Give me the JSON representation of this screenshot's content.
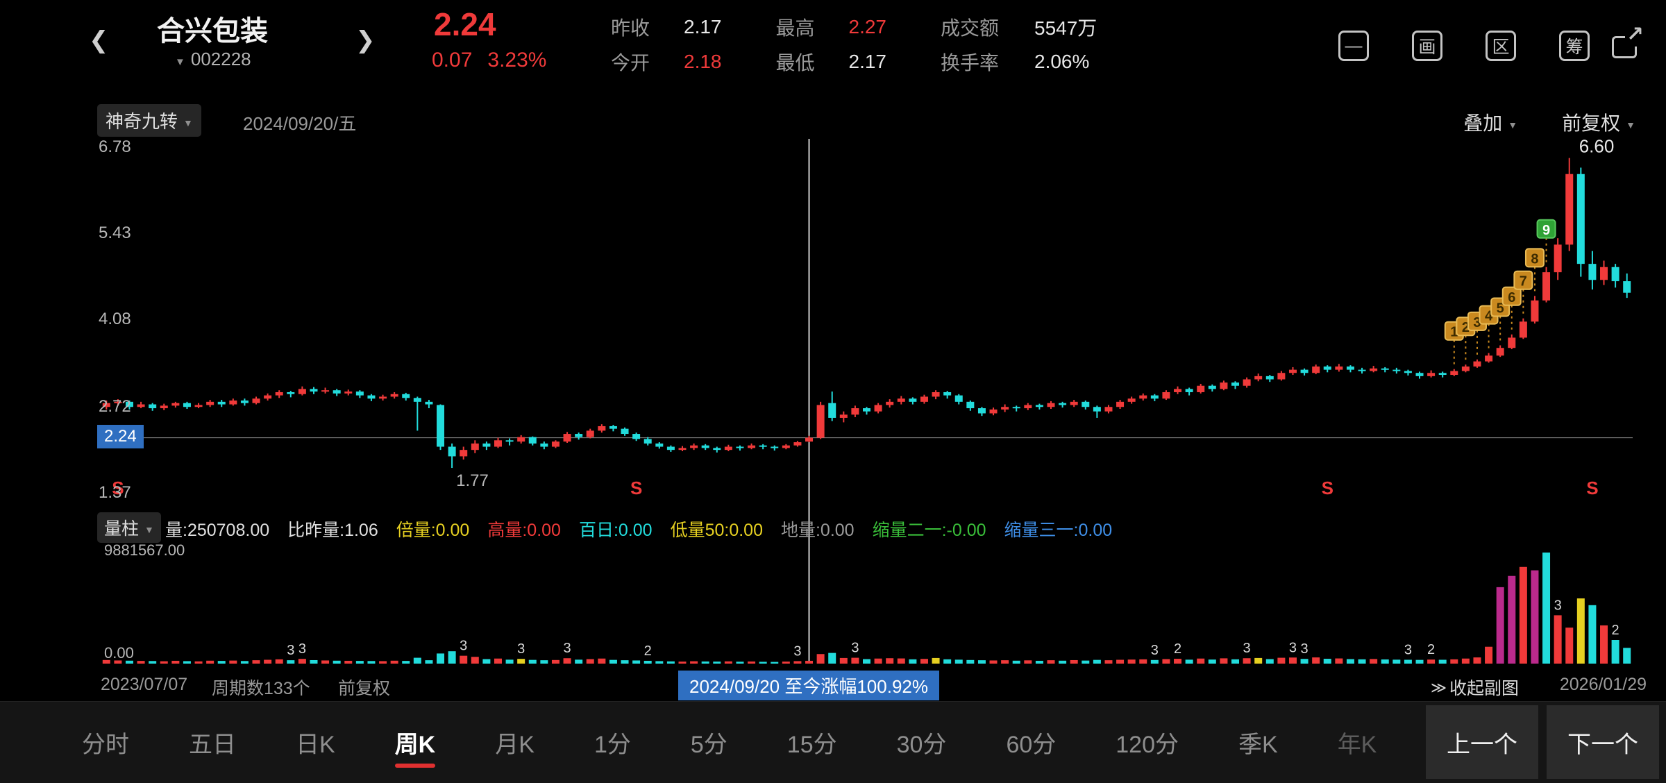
{
  "header": {
    "title": "合兴包装",
    "code": "002228",
    "price": "2.24",
    "change": "0.07",
    "change_pct": "3.23%",
    "quote": [
      {
        "label": "昨收",
        "value": "2.17",
        "color": "#e8e8e8"
      },
      {
        "label": "今开",
        "value": "2.18",
        "color": "#f03a3a"
      },
      {
        "label": "最高",
        "value": "2.27",
        "color": "#f03a3a"
      },
      {
        "label": "最低",
        "value": "2.17",
        "color": "#e8e8e8"
      },
      {
        "label": "成交额",
        "value": "5547万",
        "color": "#e8e8e8"
      },
      {
        "label": "换手率",
        "value": "2.06%",
        "color": "#e8e8e8"
      }
    ],
    "icons": [
      {
        "name": "minus-box-icon",
        "glyph": "—"
      },
      {
        "name": "draw-tool-icon",
        "glyph": "画"
      },
      {
        "name": "region-stats-icon",
        "glyph": "区"
      },
      {
        "name": "chips-icon",
        "glyph": "筹"
      }
    ]
  },
  "toolbar": {
    "indicator": "神奇九转",
    "date": "2024/09/20/五",
    "overlay": "叠加",
    "adjust": "前复权"
  },
  "volume_header": {
    "name": "量柱",
    "stats": [
      {
        "label": "量",
        "value": "250708.00",
        "color": "#e0e0e0"
      },
      {
        "label": "比昨量",
        "value": "1.06",
        "color": "#e0e0e0"
      },
      {
        "label": "倍量",
        "value": "0.00",
        "color": "#e6d021"
      },
      {
        "label": "高量",
        "value": "0.00",
        "color": "#f03a3a"
      },
      {
        "label": "百日",
        "value": "0.00",
        "color": "#22dcdc"
      },
      {
        "label": "低量50",
        "value": "0.00",
        "color": "#e6d021"
      },
      {
        "label": "地量",
        "value": "0.00",
        "color": "#9a9a9a"
      },
      {
        "label": "缩量二一",
        "value": "-0.00",
        "color": "#3abf3a"
      },
      {
        "label": "缩量三一",
        "value": "0.00",
        "color": "#3f8fe8"
      }
    ]
  },
  "footer": {
    "start_date": "2023/07/07",
    "period_count": "周期数133个",
    "adjust": "前复权",
    "range_gain": "2024/09/20 至今涨幅100.92%",
    "collapse": "收起副图",
    "end_date": "2026/01/29"
  },
  "tabs": {
    "items": [
      {
        "label": "分时"
      },
      {
        "label": "五日"
      },
      {
        "label": "日K"
      },
      {
        "label": "周K",
        "active": true
      },
      {
        "label": "月K"
      },
      {
        "label": "1分"
      },
      {
        "label": "5分"
      },
      {
        "label": "15分"
      },
      {
        "label": "30分"
      },
      {
        "label": "60分"
      },
      {
        "label": "120分"
      },
      {
        "label": "季K"
      },
      {
        "label": "年K",
        "dim": true
      }
    ],
    "prev_label": "上一个",
    "next_label": "下一个"
  },
  "chart_data": {
    "type": "candlestick",
    "title": "合兴包装(002228) 周K 前复权",
    "x_range": [
      "2023/07/07",
      "2026/01/29"
    ],
    "period_count": 133,
    "ylim": [
      1.37,
      6.78
    ],
    "y_axis_labels": [
      "6.78",
      "5.43",
      "4.08",
      "2.72",
      "1.37"
    ],
    "current_price_label": "2.24",
    "volume_ylim": [
      0,
      9881567
    ],
    "volume_axis_labels": [
      "9881567.00",
      "0.00"
    ],
    "crosshair_index": 61,
    "selected": {
      "date": "2024/09/20",
      "open": 2.18,
      "high": 2.27,
      "low": 2.17,
      "close": 2.24,
      "volume": 250708
    },
    "low_annotation": {
      "index": 30,
      "text": "1.77"
    },
    "high_annotation": {
      "index": 127,
      "text": "6.60"
    },
    "sell_markers": [
      1,
      46,
      106,
      129
    ],
    "td_badges": [
      {
        "i": 117,
        "n": "1"
      },
      {
        "i": 118,
        "n": "2"
      },
      {
        "i": 119,
        "n": "3"
      },
      {
        "i": 120,
        "n": "4"
      },
      {
        "i": 121,
        "n": "5"
      },
      {
        "i": 122,
        "n": "6"
      },
      {
        "i": 123,
        "n": "7"
      },
      {
        "i": 124,
        "n": "8"
      },
      {
        "i": 125,
        "n": "9",
        "green": true
      }
    ],
    "volume_labels": [
      {
        "i": 16,
        "t": "3"
      },
      {
        "i": 17,
        "t": "3"
      },
      {
        "i": 31,
        "t": "3"
      },
      {
        "i": 36,
        "t": "3"
      },
      {
        "i": 40,
        "t": "3"
      },
      {
        "i": 47,
        "t": "2"
      },
      {
        "i": 60,
        "t": "3"
      },
      {
        "i": 65,
        "t": "3"
      },
      {
        "i": 91,
        "t": "3"
      },
      {
        "i": 93,
        "t": "2"
      },
      {
        "i": 99,
        "t": "3"
      },
      {
        "i": 103,
        "t": "3"
      },
      {
        "i": 104,
        "t": "3"
      },
      {
        "i": 113,
        "t": "3"
      },
      {
        "i": 115,
        "t": "2"
      },
      {
        "i": 126,
        "t": "3"
      },
      {
        "i": 131,
        "t": "2"
      }
    ],
    "volume_color_overrides": {
      "36": "#e6d021",
      "72": "#e6d021",
      "100": "#e6d021",
      "121": "#bb2a8c",
      "122": "#bb2a8c",
      "124": "#bb2a8c",
      "125": "#22dcdc",
      "128": "#e6d021"
    },
    "colors": {
      "up": "#f03a3a",
      "down": "#22dcdc",
      "magenta": "#bb2a8c",
      "yellow": "#e6d021",
      "badge_orange": "#c9891f",
      "badge_green": "#2fa235",
      "crosshair": "#cfcfcf",
      "price_line": "#8a8a8a",
      "axis_text": "#b8b8b8",
      "highlight_blue": "#2f6fc1"
    },
    "candles": [
      [
        2.72,
        2.82,
        2.68,
        2.78,
        320000
      ],
      [
        2.78,
        2.84,
        2.74,
        2.8,
        280000
      ],
      [
        2.8,
        2.82,
        2.68,
        2.72,
        260000
      ],
      [
        2.72,
        2.8,
        2.7,
        2.76,
        240000
      ],
      [
        2.76,
        2.78,
        2.66,
        2.7,
        230000
      ],
      [
        2.7,
        2.77,
        2.67,
        2.74,
        210000
      ],
      [
        2.74,
        2.8,
        2.71,
        2.78,
        250000
      ],
      [
        2.78,
        2.8,
        2.69,
        2.72,
        220000
      ],
      [
        2.72,
        2.78,
        2.7,
        2.75,
        200000
      ],
      [
        2.75,
        2.83,
        2.72,
        2.8,
        260000
      ],
      [
        2.8,
        2.83,
        2.72,
        2.76,
        240000
      ],
      [
        2.76,
        2.85,
        2.74,
        2.82,
        270000
      ],
      [
        2.82,
        2.85,
        2.74,
        2.78,
        230000
      ],
      [
        2.78,
        2.88,
        2.76,
        2.85,
        300000
      ],
      [
        2.85,
        2.93,
        2.82,
        2.9,
        340000
      ],
      [
        2.9,
        2.98,
        2.86,
        2.95,
        380000
      ],
      [
        2.95,
        2.97,
        2.87,
        2.92,
        300000
      ],
      [
        2.92,
        3.04,
        2.9,
        3.0,
        420000
      ],
      [
        3.0,
        3.03,
        2.92,
        2.96,
        310000
      ],
      [
        2.96,
        3.02,
        2.93,
        2.98,
        280000
      ],
      [
        2.98,
        3.0,
        2.89,
        2.93,
        260000
      ],
      [
        2.93,
        2.99,
        2.9,
        2.96,
        250000
      ],
      [
        2.96,
        2.98,
        2.86,
        2.9,
        240000
      ],
      [
        2.9,
        2.92,
        2.81,
        2.85,
        230000
      ],
      [
        2.85,
        2.91,
        2.82,
        2.88,
        220000
      ],
      [
        2.88,
        2.95,
        2.85,
        2.92,
        260000
      ],
      [
        2.92,
        2.94,
        2.82,
        2.86,
        240000
      ],
      [
        2.86,
        2.88,
        2.35,
        2.8,
        520000
      ],
      [
        2.8,
        2.83,
        2.7,
        2.76,
        300000
      ],
      [
        2.75,
        2.76,
        2.05,
        2.1,
        900000
      ],
      [
        2.1,
        2.15,
        1.77,
        1.95,
        1100000
      ],
      [
        1.95,
        2.1,
        1.9,
        2.05,
        700000
      ],
      [
        2.05,
        2.2,
        2.0,
        2.15,
        600000
      ],
      [
        2.15,
        2.18,
        2.05,
        2.1,
        400000
      ],
      [
        2.1,
        2.24,
        2.08,
        2.2,
        450000
      ],
      [
        2.2,
        2.23,
        2.12,
        2.18,
        350000
      ],
      [
        2.18,
        2.28,
        2.15,
        2.25,
        420000
      ],
      [
        2.25,
        2.26,
        2.12,
        2.15,
        330000
      ],
      [
        2.15,
        2.18,
        2.06,
        2.1,
        300000
      ],
      [
        2.1,
        2.2,
        2.08,
        2.18,
        320000
      ],
      [
        2.18,
        2.33,
        2.16,
        2.3,
        480000
      ],
      [
        2.3,
        2.32,
        2.21,
        2.25,
        350000
      ],
      [
        2.25,
        2.38,
        2.23,
        2.35,
        400000
      ],
      [
        2.35,
        2.45,
        2.32,
        2.42,
        450000
      ],
      [
        2.42,
        2.44,
        2.34,
        2.38,
        330000
      ],
      [
        2.38,
        2.4,
        2.27,
        2.3,
        300000
      ],
      [
        2.3,
        2.32,
        2.19,
        2.22,
        280000
      ],
      [
        2.22,
        2.25,
        2.12,
        2.15,
        250000
      ],
      [
        2.15,
        2.17,
        2.07,
        2.1,
        220000
      ],
      [
        2.1,
        2.12,
        2.02,
        2.05,
        200000
      ],
      [
        2.05,
        2.11,
        2.03,
        2.08,
        180000
      ],
      [
        2.08,
        2.15,
        2.05,
        2.12,
        210000
      ],
      [
        2.12,
        2.14,
        2.05,
        2.08,
        190000
      ],
      [
        2.08,
        2.1,
        2.01,
        2.05,
        180000
      ],
      [
        2.05,
        2.13,
        2.03,
        2.1,
        200000
      ],
      [
        2.1,
        2.12,
        2.04,
        2.08,
        170000
      ],
      [
        2.08,
        2.15,
        2.06,
        2.12,
        190000
      ],
      [
        2.12,
        2.14,
        2.06,
        2.1,
        160000
      ],
      [
        2.1,
        2.12,
        2.04,
        2.08,
        150000
      ],
      [
        2.08,
        2.14,
        2.06,
        2.12,
        180000
      ],
      [
        2.12,
        2.19,
        2.1,
        2.17,
        220000
      ],
      [
        2.18,
        2.27,
        2.17,
        2.24,
        250708
      ],
      [
        2.24,
        2.8,
        2.22,
        2.75,
        850000
      ],
      [
        2.78,
        2.96,
        2.5,
        2.55,
        950000
      ],
      [
        2.55,
        2.65,
        2.48,
        2.6,
        500000
      ],
      [
        2.6,
        2.74,
        2.56,
        2.7,
        520000
      ],
      [
        2.7,
        2.72,
        2.6,
        2.65,
        400000
      ],
      [
        2.65,
        2.78,
        2.62,
        2.75,
        450000
      ],
      [
        2.75,
        2.84,
        2.71,
        2.8,
        480000
      ],
      [
        2.8,
        2.89,
        2.76,
        2.85,
        460000
      ],
      [
        2.85,
        2.87,
        2.76,
        2.8,
        380000
      ],
      [
        2.8,
        2.91,
        2.77,
        2.88,
        420000
      ],
      [
        2.88,
        2.98,
        2.84,
        2.95,
        500000
      ],
      [
        2.95,
        2.97,
        2.85,
        2.9,
        380000
      ],
      [
        2.9,
        2.92,
        2.76,
        2.8,
        350000
      ],
      [
        2.8,
        2.82,
        2.66,
        2.7,
        320000
      ],
      [
        2.7,
        2.72,
        2.58,
        2.62,
        300000
      ],
      [
        2.62,
        2.71,
        2.59,
        2.68,
        280000
      ],
      [
        2.68,
        2.76,
        2.64,
        2.72,
        300000
      ],
      [
        2.72,
        2.74,
        2.65,
        2.7,
        260000
      ],
      [
        2.7,
        2.78,
        2.67,
        2.75,
        290000
      ],
      [
        2.75,
        2.77,
        2.68,
        2.72,
        250000
      ],
      [
        2.72,
        2.81,
        2.69,
        2.78,
        300000
      ],
      [
        2.78,
        2.8,
        2.71,
        2.75,
        260000
      ],
      [
        2.75,
        2.83,
        2.72,
        2.8,
        310000
      ],
      [
        2.8,
        2.82,
        2.68,
        2.72,
        270000
      ],
      [
        2.72,
        2.74,
        2.55,
        2.65,
        330000
      ],
      [
        2.65,
        2.75,
        2.62,
        2.72,
        300000
      ],
      [
        2.72,
        2.83,
        2.69,
        2.8,
        340000
      ],
      [
        2.8,
        2.88,
        2.77,
        2.85,
        360000
      ],
      [
        2.85,
        2.93,
        2.82,
        2.9,
        380000
      ],
      [
        2.9,
        2.92,
        2.81,
        2.85,
        320000
      ],
      [
        2.85,
        2.98,
        2.83,
        2.95,
        400000
      ],
      [
        2.95,
        3.04,
        2.92,
        3.0,
        430000
      ],
      [
        3.0,
        3.02,
        2.9,
        2.95,
        350000
      ],
      [
        2.95,
        3.08,
        2.93,
        3.05,
        450000
      ],
      [
        3.05,
        3.07,
        2.96,
        3.0,
        360000
      ],
      [
        3.0,
        3.13,
        2.98,
        3.1,
        470000
      ],
      [
        3.1,
        3.12,
        3.0,
        3.05,
        380000
      ],
      [
        3.05,
        3.18,
        3.02,
        3.15,
        480000
      ],
      [
        3.15,
        3.24,
        3.12,
        3.2,
        500000
      ],
      [
        3.2,
        3.22,
        3.11,
        3.15,
        400000
      ],
      [
        3.15,
        3.28,
        3.13,
        3.25,
        520000
      ],
      [
        3.25,
        3.34,
        3.22,
        3.3,
        540000
      ],
      [
        3.3,
        3.32,
        3.21,
        3.25,
        420000
      ],
      [
        3.25,
        3.38,
        3.23,
        3.35,
        550000
      ],
      [
        3.35,
        3.37,
        3.26,
        3.3,
        430000
      ],
      [
        3.3,
        3.39,
        3.27,
        3.35,
        460000
      ],
      [
        3.35,
        3.37,
        3.26,
        3.3,
        400000
      ],
      [
        3.3,
        3.33,
        3.24,
        3.28,
        380000
      ],
      [
        3.28,
        3.36,
        3.26,
        3.32,
        410000
      ],
      [
        3.32,
        3.34,
        3.26,
        3.3,
        370000
      ],
      [
        3.3,
        3.33,
        3.24,
        3.28,
        350000
      ],
      [
        3.28,
        3.3,
        3.21,
        3.25,
        340000
      ],
      [
        3.25,
        3.27,
        3.16,
        3.2,
        330000
      ],
      [
        3.2,
        3.29,
        3.18,
        3.25,
        360000
      ],
      [
        3.25,
        3.27,
        3.18,
        3.22,
        340000
      ],
      [
        3.22,
        3.31,
        3.2,
        3.28,
        380000
      ],
      [
        3.28,
        3.38,
        3.26,
        3.35,
        450000
      ],
      [
        3.35,
        3.46,
        3.33,
        3.43,
        550000
      ],
      [
        3.43,
        3.56,
        3.41,
        3.52,
        1500000
      ],
      [
        3.52,
        3.68,
        3.5,
        3.64,
        6800000
      ],
      [
        3.64,
        3.85,
        3.62,
        3.8,
        7800000
      ],
      [
        3.8,
        4.1,
        3.78,
        4.05,
        8600000
      ],
      [
        4.05,
        4.45,
        4.02,
        4.38,
        8300000
      ],
      [
        4.38,
        4.9,
        4.35,
        4.82,
        9881567
      ],
      [
        4.82,
        5.35,
        4.7,
        5.25,
        4300000
      ],
      [
        5.25,
        6.6,
        5.15,
        6.35,
        3200000
      ],
      [
        6.35,
        6.45,
        4.75,
        4.95,
        5800000
      ],
      [
        4.95,
        5.15,
        4.55,
        4.7,
        5200000
      ],
      [
        4.7,
        5.0,
        4.62,
        4.9,
        3400000
      ],
      [
        4.9,
        4.95,
        4.58,
        4.68,
        2100000
      ],
      [
        4.68,
        4.8,
        4.42,
        4.5,
        1400000
      ]
    ]
  }
}
